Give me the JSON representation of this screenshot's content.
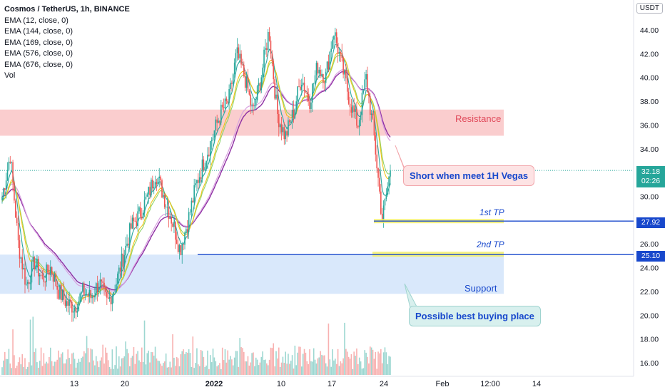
{
  "header": {
    "title": "Cosmos / TetherUS, 1h, BINANCE",
    "indicators": [
      "EMA (12, close, 0)",
      "EMA (144, close, 0)",
      "EMA (169, close, 0)",
      "EMA (576, close, 0)",
      "EMA (676, close, 0)",
      "Vol"
    ],
    "currency_button": "USDT"
  },
  "annotations": {
    "resistance": "Resistance",
    "support": "Support",
    "short_callout": "Short when meet 1H Vegas",
    "buy_callout": "Possible best buying place",
    "tp1": "1st TP",
    "tp2": "2nd TP"
  },
  "price_tags": {
    "current": "32.18",
    "countdown": "02:26",
    "tp1": "27.92",
    "tp2": "25.10"
  },
  "colors": {
    "up": "#26a69a",
    "down": "#ef5350",
    "resistance_zone": "#f9c4c6",
    "support_zone": "#d9e8fb",
    "level_line": "#1848cc",
    "highlight": "#f2ee6b",
    "ema12": "#2aa7a0",
    "ema144": "#f0c419",
    "ema169": "#8fd46b",
    "ema576": "#d9a3e0",
    "ema676": "#8e2fa3"
  },
  "chart_data": {
    "type": "candlestick",
    "title": "Cosmos / TetherUS, 1h, BINANCE",
    "y_axis": {
      "ticks": [
        "16.00",
        "18.00",
        "20.00",
        "22.00",
        "24.00",
        "26.00",
        "28.00",
        "30.00",
        "32.00",
        "34.00",
        "36.00",
        "38.00",
        "40.00",
        "42.00",
        "44.00"
      ],
      "ylim": [
        15.0,
        46.0
      ]
    },
    "x_axis": {
      "ticks": [
        "13",
        "20",
        "2022",
        "10",
        "17",
        "24",
        "Feb",
        "12:00",
        "14"
      ]
    },
    "price_path": [
      {
        "t": "Dec 7",
        "p": 30.0
      },
      {
        "t": "Dec 8",
        "p": 33.5
      },
      {
        "t": "Dec 9",
        "p": 26.0
      },
      {
        "t": "Dec 10",
        "p": 22.5
      },
      {
        "t": "Dec 11",
        "p": 24.5
      },
      {
        "t": "Dec 12",
        "p": 23.0
      },
      {
        "t": "Dec 13",
        "p": 24.0
      },
      {
        "t": "Dec 14",
        "p": 22.0
      },
      {
        "t": "Dec 15",
        "p": 21.0
      },
      {
        "t": "Dec 16",
        "p": 20.7
      },
      {
        "t": "Dec 17",
        "p": 22.0
      },
      {
        "t": "Dec 18",
        "p": 21.5
      },
      {
        "t": "Dec 19",
        "p": 22.8
      },
      {
        "t": "Dec 20",
        "p": 21.0
      },
      {
        "t": "Dec 21",
        "p": 22.5
      },
      {
        "t": "Dec 22",
        "p": 25.0
      },
      {
        "t": "Dec 23",
        "p": 27.5
      },
      {
        "t": "Dec 24",
        "p": 28.5
      },
      {
        "t": "Dec 25",
        "p": 30.0
      },
      {
        "t": "Dec 26",
        "p": 32.0
      },
      {
        "t": "Dec 27",
        "p": 30.0
      },
      {
        "t": "Dec 28",
        "p": 28.0
      },
      {
        "t": "Dec 29",
        "p": 25.5
      },
      {
        "t": "Dec 30",
        "p": 28.0
      },
      {
        "t": "Dec 31",
        "p": 31.0
      },
      {
        "t": "Jan 1",
        "p": 33.0
      },
      {
        "t": "Jan 2",
        "p": 35.0
      },
      {
        "t": "Jan 3",
        "p": 37.0
      },
      {
        "t": "Jan 4",
        "p": 38.0
      },
      {
        "t": "Jan 5",
        "p": 42.0
      },
      {
        "t": "Jan 6",
        "p": 40.0
      },
      {
        "t": "Jan 7",
        "p": 37.0
      },
      {
        "t": "Jan 8",
        "p": 40.0
      },
      {
        "t": "Jan 9",
        "p": 44.0
      },
      {
        "t": "Jan 10",
        "p": 37.0
      },
      {
        "t": "Jan 11",
        "p": 35.0
      },
      {
        "t": "Jan 12",
        "p": 37.0
      },
      {
        "t": "Jan 13",
        "p": 40.0
      },
      {
        "t": "Jan 14",
        "p": 38.0
      },
      {
        "t": "Jan 15",
        "p": 41.0
      },
      {
        "t": "Jan 16",
        "p": 40.0
      },
      {
        "t": "Jan 17",
        "p": 44.0
      },
      {
        "t": "Jan 18",
        "p": 41.0
      },
      {
        "t": "Jan 19",
        "p": 38.0
      },
      {
        "t": "Jan 20",
        "p": 36.0
      },
      {
        "t": "Jan 21",
        "p": 40.0
      },
      {
        "t": "Jan 22",
        "p": 35.0
      },
      {
        "t": "Jan 23",
        "p": 28.0
      },
      {
        "t": "Jan 24",
        "p": 32.18
      }
    ],
    "levels": {
      "resistance_zone": [
        35.1,
        37.3
      ],
      "support_zone": [
        21.8,
        25.1
      ],
      "tp1": 27.92,
      "tp2": 25.1,
      "last": 32.18
    }
  }
}
